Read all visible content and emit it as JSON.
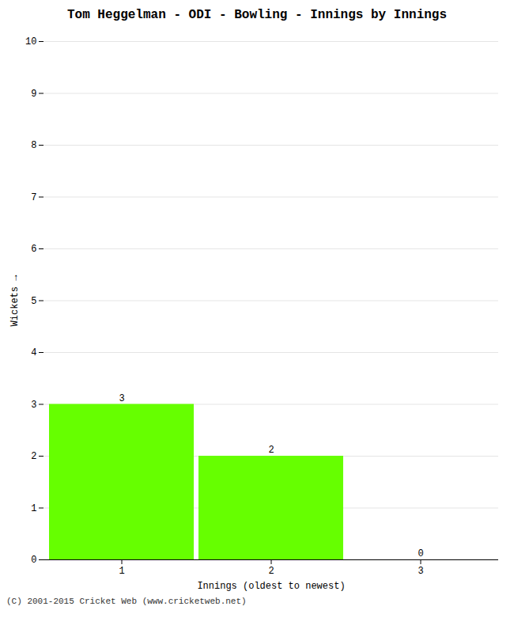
{
  "chart_data": {
    "type": "bar",
    "title": "Tom Heggelman - ODI - Bowling - Innings by Innings",
    "xlabel": "Innings (oldest to newest)",
    "ylabel": "Wickets",
    "categories": [
      1,
      2,
      3
    ],
    "values": [
      3,
      2,
      0
    ],
    "color": "#66ff00",
    "ylim": [
      0,
      10
    ],
    "yticks": [
      0,
      1,
      2,
      3,
      4,
      5,
      6,
      7,
      8,
      9,
      10
    ],
    "grid": true,
    "data_labels": true,
    "annotations": [
      "(C) 2001-2015 Cricket Web (www.cricketweb.net)"
    ]
  }
}
